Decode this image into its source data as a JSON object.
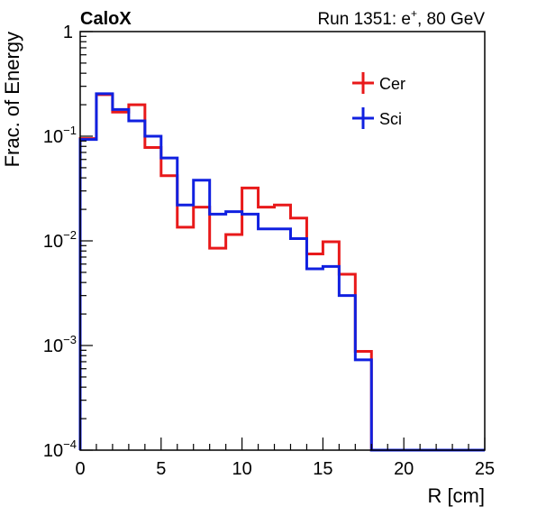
{
  "header": {
    "experiment": "CaloX",
    "run_label": "Run 1351: e",
    "run_superscript": "+",
    "run_suffix": ", 80 GeV"
  },
  "colors": {
    "cer": "#e8191a",
    "sci": "#1020e0",
    "axis": "#000000"
  },
  "chart_data": {
    "type": "line",
    "style": "step-histogram",
    "xlabel": "R [cm]",
    "ylabel": "Frac. of Energy",
    "xlim": [
      0,
      25
    ],
    "ylim": [
      0.0001,
      1
    ],
    "yscale": "log",
    "grid": false,
    "legend_position": "top-right",
    "x_ticks": [
      0,
      5,
      10,
      15,
      20,
      25
    ],
    "y_ticks": [
      {
        "value": 1,
        "base": "1",
        "exp": ""
      },
      {
        "value": 0.1,
        "base": "10",
        "exp": "−1"
      },
      {
        "value": 0.01,
        "base": "10",
        "exp": "−2"
      },
      {
        "value": 0.001,
        "base": "10",
        "exp": "−3"
      },
      {
        "value": 0.0001,
        "base": "10",
        "exp": "−4"
      }
    ],
    "bin_edges": [
      0,
      1,
      2,
      3,
      4,
      5,
      6,
      7,
      8,
      9,
      10,
      11,
      12,
      13,
      14,
      15,
      16,
      17,
      18,
      19,
      20,
      21,
      22,
      23,
      24,
      25
    ],
    "series": [
      {
        "name": "Cer",
        "color_key": "cer",
        "values": [
          0.095,
          0.25,
          0.17,
          0.2,
          0.078,
          0.042,
          0.0135,
          0.021,
          0.0085,
          0.0115,
          0.032,
          0.021,
          0.022,
          0.0165,
          0.0075,
          0.0098,
          0.0048,
          0.00088,
          0.0001,
          0.0001,
          0.0001,
          0.0001,
          0.0001,
          0.0001,
          0.0001
        ]
      },
      {
        "name": "Sci",
        "color_key": "sci",
        "values": [
          0.093,
          0.255,
          0.18,
          0.14,
          0.1,
          0.062,
          0.022,
          0.038,
          0.018,
          0.019,
          0.018,
          0.013,
          0.013,
          0.0105,
          0.0054,
          0.0057,
          0.003,
          0.00073,
          0.0001,
          0.0001,
          0.0001,
          0.0001,
          0.0001,
          0.0001,
          0.0001
        ]
      }
    ]
  }
}
